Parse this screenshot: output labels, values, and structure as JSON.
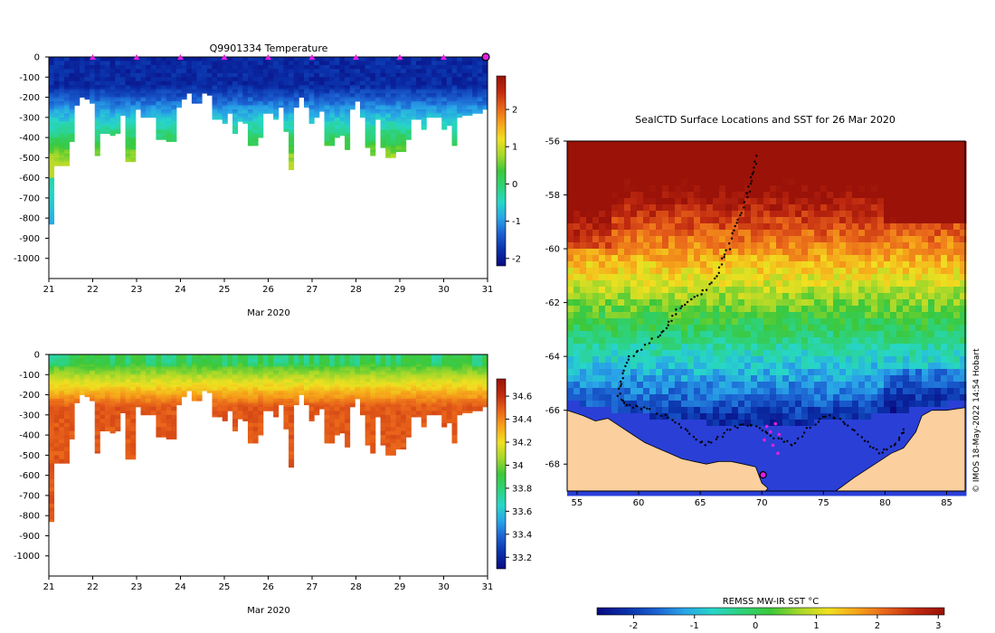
{
  "chart_data": [
    {
      "type": "heatmap",
      "title": "Q9901334  Temperature",
      "xlabel": "Mar 2020",
      "ylabel": "",
      "x_ticks": [
        "21",
        "22",
        "23",
        "24",
        "25",
        "26",
        "27",
        "28",
        "29",
        "30",
        "31"
      ],
      "y_ticks": [
        "0",
        "-100",
        "-200",
        "-300",
        "-400",
        "-500",
        "-600",
        "-700",
        "-800",
        "-900",
        "-1000"
      ],
      "xlim": [
        21,
        31
      ],
      "ylim": [
        -1100,
        0
      ],
      "colorbar_ticks": [
        "2",
        "1",
        "0",
        "-1",
        "-2"
      ],
      "colorbar_range": [
        -2.2,
        2.9
      ],
      "colormap": [
        "#0a0a80",
        "#0a2fa8",
        "#1b5fd0",
        "#29a3e8",
        "#27d6c8",
        "#2ed27a",
        "#3cc83a",
        "#a6d82a",
        "#f0e020",
        "#f6a21a",
        "#e8631a",
        "#c02a10",
        "#9a1208"
      ],
      "profile_marker_days": [
        22,
        23,
        24,
        25,
        26,
        27,
        28,
        29,
        30
      ],
      "current_marker_day": 31,
      "profile_max_depths_m": [
        830,
        535,
        535,
        535,
        420,
        240,
        200,
        210,
        230,
        490,
        375,
        380,
        385,
        380,
        290,
        520,
        520,
        255,
        300,
        300,
        300,
        410,
        410,
        420,
        420,
        245,
        205,
        180,
        225,
        225,
        180,
        185,
        310,
        310,
        325,
        280,
        375,
        320,
        325,
        440,
        440,
        400,
        280,
        280,
        310,
        245,
        365,
        555,
        250,
        200,
        250,
        330,
        300,
        270,
        435,
        435,
        400,
        390,
        460,
        255,
        220,
        300,
        445,
        490,
        310,
        450,
        500,
        500,
        470,
        470,
        410,
        310,
        305,
        360,
        300,
        300,
        300,
        360,
        340,
        440,
        300,
        290,
        290,
        280,
        275,
        260
      ],
      "color_scale_note": "values in degrees C; surface ~-1.8, warming with depth to ~0-1"
    },
    {
      "type": "heatmap",
      "title": "",
      "xlabel": "Mar 2020",
      "ylabel": "",
      "x_ticks": [
        "21",
        "22",
        "23",
        "24",
        "25",
        "26",
        "27",
        "28",
        "29",
        "30",
        "31"
      ],
      "y_ticks": [
        "0",
        "-100",
        "-200",
        "-300",
        "-400",
        "-500",
        "-600",
        "-700",
        "-800",
        "-900",
        "-1000"
      ],
      "xlim": [
        21,
        31
      ],
      "ylim": [
        -1100,
        0
      ],
      "colorbar_ticks": [
        "34.6",
        "34.4",
        "34.2",
        "34",
        "33.8",
        "33.6",
        "33.4",
        "33.2"
      ],
      "colorbar_range": [
        33.1,
        34.75
      ],
      "colormap": [
        "#0a0a80",
        "#0a2fa8",
        "#1b5fd0",
        "#29a3e8",
        "#27d6c8",
        "#2ed27a",
        "#3cc83a",
        "#a6d82a",
        "#f0e020",
        "#f6a21a",
        "#e8631a",
        "#c02a10",
        "#9a1208"
      ],
      "color_scale_note": "salinity; surface ~34.0, increasing with depth to ~34.5"
    },
    {
      "type": "heatmap",
      "title": "SealCTD Surface Locations and SST for 26 Mar 2020",
      "xlabel": "",
      "ylabel": "",
      "x_ticks": [
        "55",
        "60",
        "65",
        "70",
        "75",
        "80",
        "85"
      ],
      "y_ticks": [
        "-56",
        "-58",
        "-60",
        "-62",
        "-64",
        "-66",
        "-68"
      ],
      "xlim": [
        54.2,
        86.5
      ],
      "ylim": [
        -69,
        -56
      ],
      "colorbar_label": "REMSS MW-IR SST °C",
      "colorbar_ticks": [
        "-2",
        "-1",
        "0",
        "1",
        "2",
        "3"
      ],
      "colorbar_range": [
        -2.6,
        3.1
      ],
      "colormap": [
        "#0a0a80",
        "#0a2fa8",
        "#1b5fd0",
        "#29a3e8",
        "#27d6c8",
        "#2ed27a",
        "#3cc83a",
        "#a6d82a",
        "#f0e020",
        "#f6a21a",
        "#e8631a",
        "#c02a10",
        "#9a1208"
      ],
      "land_color": "#fbcf9e",
      "ice_color": "#2a3fd6",
      "track_lonlat": [
        [
          69.6,
          -56.6
        ],
        [
          69.3,
          -57.1
        ],
        [
          69.1,
          -57.6
        ],
        [
          68.8,
          -58.1
        ],
        [
          68.2,
          -58.8
        ],
        [
          67.8,
          -59.3
        ],
        [
          67.3,
          -60.0
        ],
        [
          66.8,
          -60.4
        ],
        [
          66.3,
          -61.0
        ],
        [
          65.5,
          -61.5
        ],
        [
          64.5,
          -61.8
        ],
        [
          63.5,
          -62.1
        ],
        [
          62.8,
          -62.5
        ],
        [
          62.2,
          -63.0
        ],
        [
          61.5,
          -63.3
        ],
        [
          60.2,
          -63.7
        ],
        [
          59.3,
          -64.0
        ],
        [
          58.8,
          -64.5
        ],
        [
          58.5,
          -65.0
        ],
        [
          58.4,
          -65.5
        ],
        [
          59.0,
          -65.8
        ],
        [
          60.0,
          -65.9
        ],
        [
          61.0,
          -66.0
        ],
        [
          62.5,
          -66.3
        ],
        [
          63.5,
          -66.6
        ],
        [
          64.5,
          -67.0
        ],
        [
          65.5,
          -67.3
        ],
        [
          66.5,
          -67.0
        ],
        [
          67.5,
          -66.7
        ],
        [
          68.5,
          -66.5
        ],
        [
          69.5,
          -66.6
        ],
        [
          70.5,
          -66.9
        ],
        [
          71.5,
          -67.1
        ],
        [
          72.5,
          -67.3
        ],
        [
          73.5,
          -66.8
        ],
        [
          74.5,
          -66.4
        ],
        [
          75.5,
          -66.2
        ],
        [
          76.5,
          -66.4
        ],
        [
          77.5,
          -66.8
        ],
        [
          78.5,
          -67.2
        ],
        [
          79.5,
          -67.6
        ],
        [
          80.5,
          -67.4
        ],
        [
          81.2,
          -67.0
        ],
        [
          81.6,
          -66.6
        ]
      ],
      "profile_locations_lonlat": [
        [
          70.4,
          -66.6
        ],
        [
          70.7,
          -66.8
        ],
        [
          71.1,
          -66.5
        ],
        [
          71.4,
          -66.9
        ],
        [
          70.9,
          -67.3
        ],
        [
          71.3,
          -67.6
        ],
        [
          70.2,
          -67.1
        ]
      ],
      "current_location_lonlat": [
        70.1,
        -68.4
      ],
      "watermark": "© IMOS 18-May-2022 14:54 Hobart"
    }
  ]
}
